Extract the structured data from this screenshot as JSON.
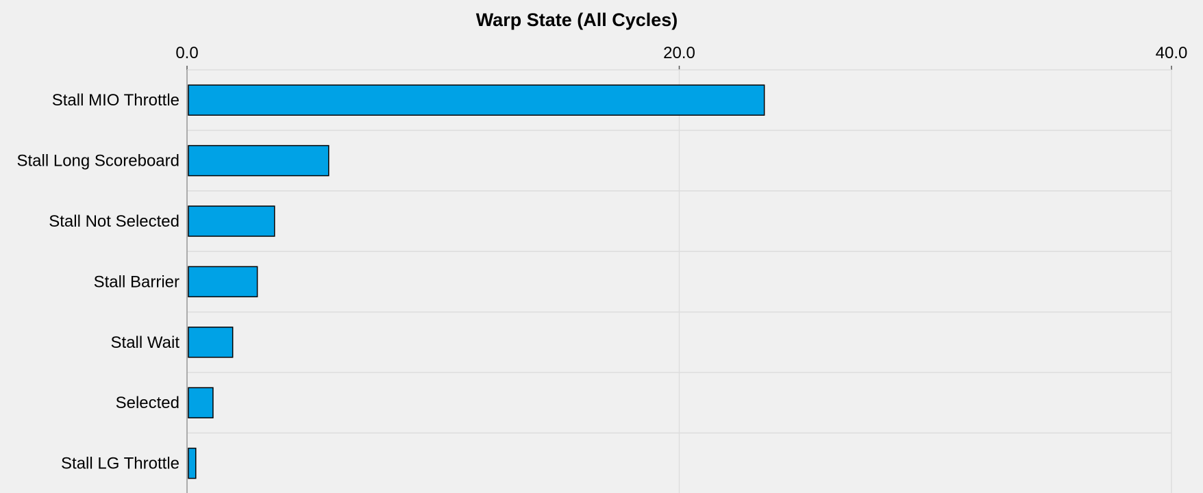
{
  "chart_data": {
    "type": "bar",
    "orientation": "horizontal",
    "title": "Warp State (All Cycles)",
    "xlabel": "",
    "ylabel": "",
    "categories": [
      "Stall MIO Throttle",
      "Stall Long Scoreboard",
      "Stall Not Selected",
      "Stall Barrier",
      "Stall Wait",
      "Selected",
      "Stall LG Throttle"
    ],
    "values": [
      23.4,
      5.7,
      3.5,
      2.8,
      1.8,
      1.0,
      0.3
    ],
    "xlim": [
      0,
      40
    ],
    "xticks": [
      "0.0",
      "20.0",
      "40.0"
    ],
    "x_axis_position": "top",
    "grid": true,
    "legend": "none",
    "bar_color": "#00a2e6",
    "bar_edge_color": "#000000",
    "background_color": "#f0f0f0",
    "grid_color": "#dddddd"
  }
}
